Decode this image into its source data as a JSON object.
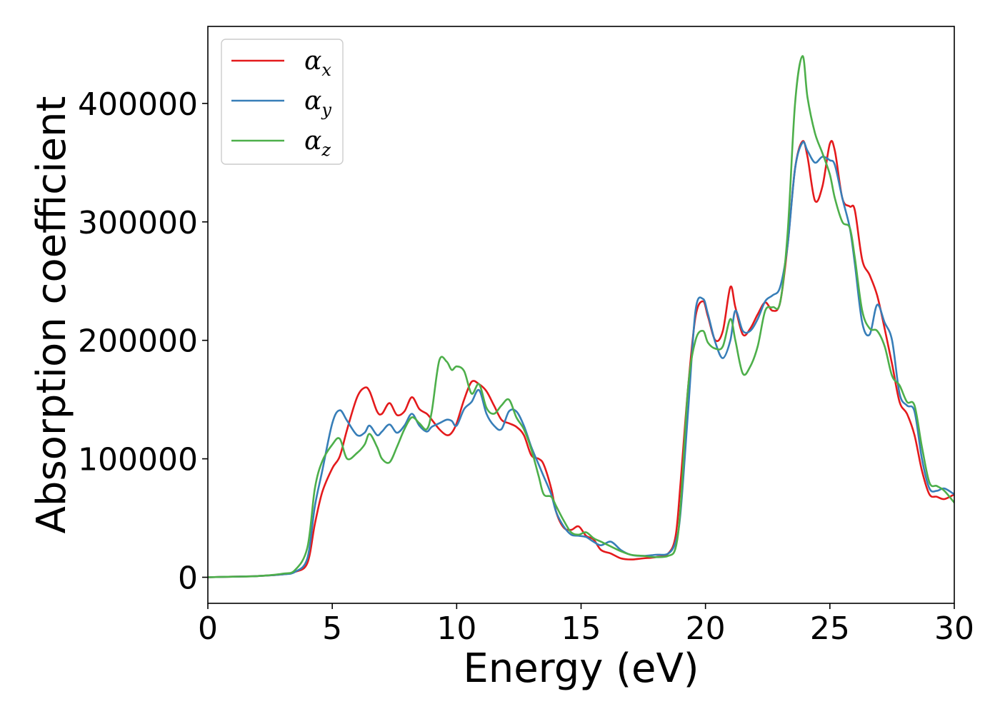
{
  "chart_data": {
    "type": "line",
    "title": "",
    "xlabel": "Energy (eV)",
    "ylabel": "Absorption coefficient",
    "xlim": [
      0,
      30
    ],
    "ylim": [
      -22000,
      465000
    ],
    "xticks": [
      0,
      5,
      10,
      15,
      20,
      25,
      30
    ],
    "yticks": [
      0,
      100000,
      200000,
      300000,
      400000
    ],
    "xtick_labels": [
      "0",
      "5",
      "10",
      "15",
      "20",
      "25",
      "30"
    ],
    "ytick_labels": [
      "0",
      "100000",
      "200000",
      "300000",
      "400000"
    ],
    "grid": false,
    "legend_position": "top-left",
    "series": [
      {
        "name": "α_x",
        "label_main": "α",
        "label_sub": "x",
        "color": "#e41a1c",
        "x": [
          0,
          1,
          2,
          3,
          3.5,
          4,
          4.3,
          4.6,
          5,
          5.3,
          5.6,
          6,
          6.3,
          6.5,
          6.8,
          7.0,
          7.3,
          7.6,
          7.9,
          8.2,
          8.5,
          8.8,
          9.0,
          9.3,
          9.6,
          9.8,
          10.0,
          10.3,
          10.6,
          10.9,
          11.2,
          11.5,
          11.8,
          12.1,
          12.4,
          12.7,
          13.0,
          13.3,
          13.5,
          13.8,
          14.0,
          14.3,
          14.6,
          14.9,
          15.2,
          15.5,
          15.8,
          16.2,
          16.6,
          17.0,
          17.5,
          18.0,
          18.5,
          18.8,
          19.0,
          19.3,
          19.6,
          19.9,
          20.1,
          20.4,
          20.7,
          21.0,
          21.2,
          21.5,
          21.8,
          22.1,
          22.4,
          22.7,
          23.0,
          23.3,
          23.6,
          23.9,
          24.1,
          24.4,
          24.7,
          25.0,
          25.2,
          25.5,
          25.8,
          26.0,
          26.3,
          26.6,
          26.9,
          27.2,
          27.5,
          27.8,
          28.1,
          28.4,
          28.7,
          29.0,
          29.3,
          29.6,
          30.0
        ],
        "y": [
          0,
          500,
          1000,
          2500,
          4500,
          12000,
          45000,
          72000,
          92000,
          102000,
          125000,
          152000,
          160000,
          157000,
          140000,
          138000,
          147000,
          137000,
          140000,
          152000,
          142000,
          138000,
          133000,
          125000,
          120000,
          122000,
          130000,
          150000,
          165000,
          163000,
          157000,
          145000,
          133000,
          130000,
          127000,
          120000,
          103000,
          100000,
          95000,
          75000,
          55000,
          42000,
          40000,
          43000,
          35000,
          32000,
          23000,
          20000,
          16000,
          15000,
          16000,
          17000,
          20000,
          35000,
          80000,
          160000,
          220000,
          233000,
          220000,
          200000,
          208000,
          245000,
          228000,
          205000,
          210000,
          222000,
          232000,
          225000,
          232000,
          280000,
          345000,
          368000,
          355000,
          318000,
          330000,
          366000,
          360000,
          320000,
          313000,
          310000,
          268000,
          255000,
          238000,
          210000,
          180000,
          148000,
          138000,
          120000,
          90000,
          70000,
          68000,
          66000,
          70000
        ]
      },
      {
        "name": "α_y",
        "label_main": "α",
        "label_sub": "y",
        "color": "#377eb8",
        "x": [
          0,
          1,
          2,
          3,
          3.5,
          4,
          4.3,
          4.6,
          5,
          5.3,
          5.6,
          6,
          6.3,
          6.5,
          6.8,
          7.0,
          7.3,
          7.6,
          7.9,
          8.2,
          8.5,
          8.8,
          9.0,
          9.3,
          9.6,
          9.8,
          10.0,
          10.3,
          10.6,
          10.9,
          11.2,
          11.5,
          11.8,
          12.1,
          12.4,
          12.7,
          13.0,
          13.3,
          13.5,
          13.8,
          14.0,
          14.3,
          14.6,
          14.9,
          15.2,
          15.5,
          15.8,
          16.2,
          16.6,
          17.0,
          17.5,
          18.0,
          18.5,
          18.8,
          19.0,
          19.3,
          19.6,
          19.9,
          20.1,
          20.4,
          20.7,
          21.0,
          21.2,
          21.5,
          21.8,
          22.1,
          22.4,
          22.7,
          23.0,
          23.3,
          23.6,
          23.9,
          24.1,
          24.4,
          24.7,
          25.0,
          25.2,
          25.5,
          25.8,
          26.0,
          26.3,
          26.6,
          26.9,
          27.2,
          27.5,
          27.8,
          28.1,
          28.4,
          28.7,
          29.0,
          29.3,
          29.6,
          30.0
        ],
        "y": [
          0,
          500,
          1000,
          2500,
          4500,
          16000,
          60000,
          90000,
          130000,
          141000,
          132000,
          120000,
          122000,
          128000,
          120000,
          123000,
          129000,
          122000,
          128000,
          138000,
          128000,
          123000,
          127000,
          130000,
          133000,
          132000,
          128000,
          142000,
          148000,
          158000,
          138000,
          128000,
          125000,
          140000,
          140000,
          128000,
          110000,
          95000,
          85000,
          70000,
          55000,
          43000,
          36000,
          35000,
          34000,
          30000,
          27000,
          30000,
          23000,
          19000,
          18000,
          19000,
          20000,
          30000,
          55000,
          140000,
          225000,
          235000,
          222000,
          198000,
          185000,
          200000,
          225000,
          208000,
          208000,
          218000,
          233000,
          238000,
          245000,
          280000,
          345000,
          367000,
          360000,
          350000,
          355000,
          352000,
          348000,
          320000,
          295000,
          265000,
          215000,
          205000,
          230000,
          215000,
          200000,
          155000,
          145000,
          140000,
          100000,
          75000,
          73000,
          75000,
          70000
        ]
      },
      {
        "name": "α_z",
        "label_main": "α",
        "label_sub": "z",
        "color": "#4daf4a",
        "x": [
          0,
          1,
          2,
          3,
          3.5,
          4,
          4.3,
          4.6,
          5,
          5.3,
          5.6,
          6,
          6.3,
          6.5,
          6.8,
          7.0,
          7.3,
          7.6,
          7.9,
          8.2,
          8.5,
          8.8,
          9.0,
          9.3,
          9.6,
          9.8,
          10.0,
          10.3,
          10.6,
          10.9,
          11.2,
          11.5,
          11.8,
          12.1,
          12.4,
          12.7,
          13.0,
          13.3,
          13.5,
          13.8,
          14.0,
          14.3,
          14.6,
          14.9,
          15.2,
          15.5,
          15.8,
          16.2,
          16.6,
          17.0,
          17.5,
          18.0,
          18.5,
          18.8,
          19.0,
          19.3,
          19.6,
          19.9,
          20.1,
          20.4,
          20.7,
          21.0,
          21.2,
          21.5,
          21.8,
          22.1,
          22.4,
          22.7,
          23.0,
          23.3,
          23.6,
          23.9,
          24.1,
          24.4,
          24.7,
          25.0,
          25.2,
          25.5,
          25.8,
          26.0,
          26.3,
          26.6,
          26.9,
          27.2,
          27.5,
          27.8,
          28.1,
          28.4,
          28.7,
          29.0,
          29.3,
          29.6,
          30.0
        ],
        "y": [
          0,
          500,
          1000,
          3000,
          6000,
          25000,
          75000,
          98000,
          112000,
          117000,
          100000,
          105000,
          112000,
          121000,
          110000,
          100000,
          97000,
          110000,
          125000,
          135000,
          130000,
          125000,
          140000,
          183000,
          182000,
          175000,
          178000,
          174000,
          155000,
          163000,
          143000,
          138000,
          145000,
          150000,
          135000,
          125000,
          108000,
          85000,
          70000,
          68000,
          60000,
          48000,
          38000,
          36000,
          38000,
          33000,
          30000,
          26000,
          22000,
          19000,
          18000,
          17000,
          18000,
          25000,
          60000,
          160000,
          200000,
          208000,
          198000,
          193000,
          195000,
          218000,
          200000,
          172000,
          178000,
          195000,
          225000,
          228000,
          232000,
          290000,
          400000,
          440000,
          405000,
          375000,
          358000,
          340000,
          320000,
          300000,
          295000,
          270000,
          225000,
          210000,
          208000,
          195000,
          170000,
          162000,
          148000,
          145000,
          110000,
          80000,
          77000,
          73000,
          63000
        ]
      }
    ]
  }
}
